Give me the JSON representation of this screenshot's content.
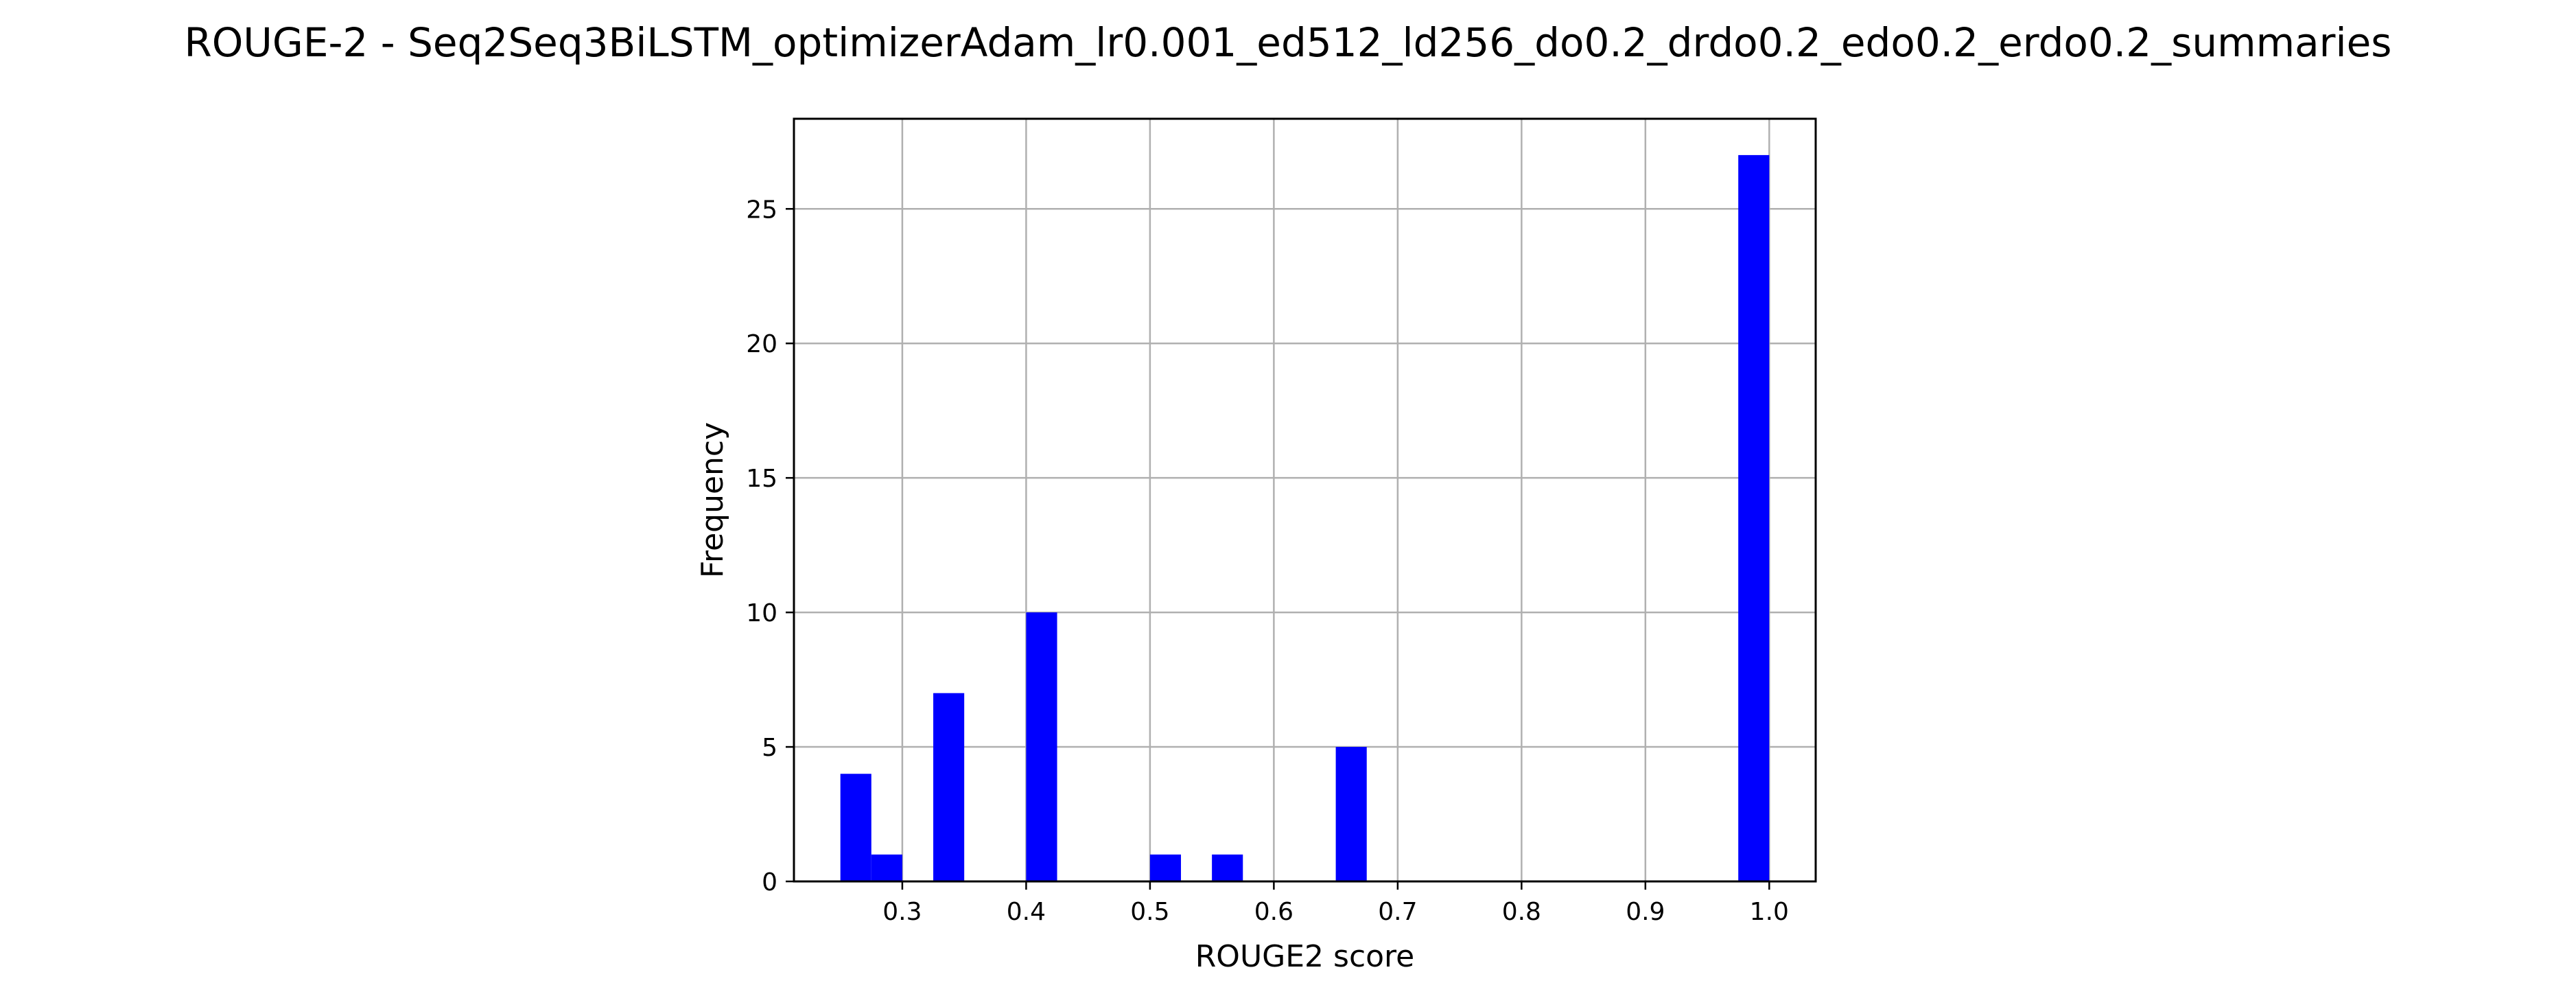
{
  "chart_data": {
    "type": "bar",
    "title": "ROUGE-2 - Seq2Seq3BiLSTM_optimizerAdam_lr0.001_ed512_ld256_do0.2_drdo0.2_edo0.2_erdo0.2_summaries",
    "xlabel": "ROUGE2 score",
    "ylabel": "Frequency",
    "bin_width": 0.025,
    "xlim": [
      0.2125,
      1.0375
    ],
    "ylim": [
      0,
      28.35
    ],
    "xticks": [
      0.3,
      0.4,
      0.5,
      0.6,
      0.7,
      0.8,
      0.9,
      1.0
    ],
    "xtick_labels": [
      "0.3",
      "0.4",
      "0.5",
      "0.6",
      "0.7",
      "0.8",
      "0.9",
      "1.0"
    ],
    "yticks": [
      0,
      5,
      10,
      15,
      20,
      25
    ],
    "ytick_labels": [
      "0",
      "5",
      "10",
      "15",
      "20",
      "25"
    ],
    "grid": true,
    "bar_color": "#0000ff",
    "bins": [
      {
        "x": 0.25,
        "value": 4
      },
      {
        "x": 0.275,
        "value": 1
      },
      {
        "x": 0.325,
        "value": 7
      },
      {
        "x": 0.4,
        "value": 10
      },
      {
        "x": 0.5,
        "value": 1
      },
      {
        "x": 0.55,
        "value": 1
      },
      {
        "x": 0.65,
        "value": 5
      },
      {
        "x": 0.975,
        "value": 27
      }
    ]
  }
}
